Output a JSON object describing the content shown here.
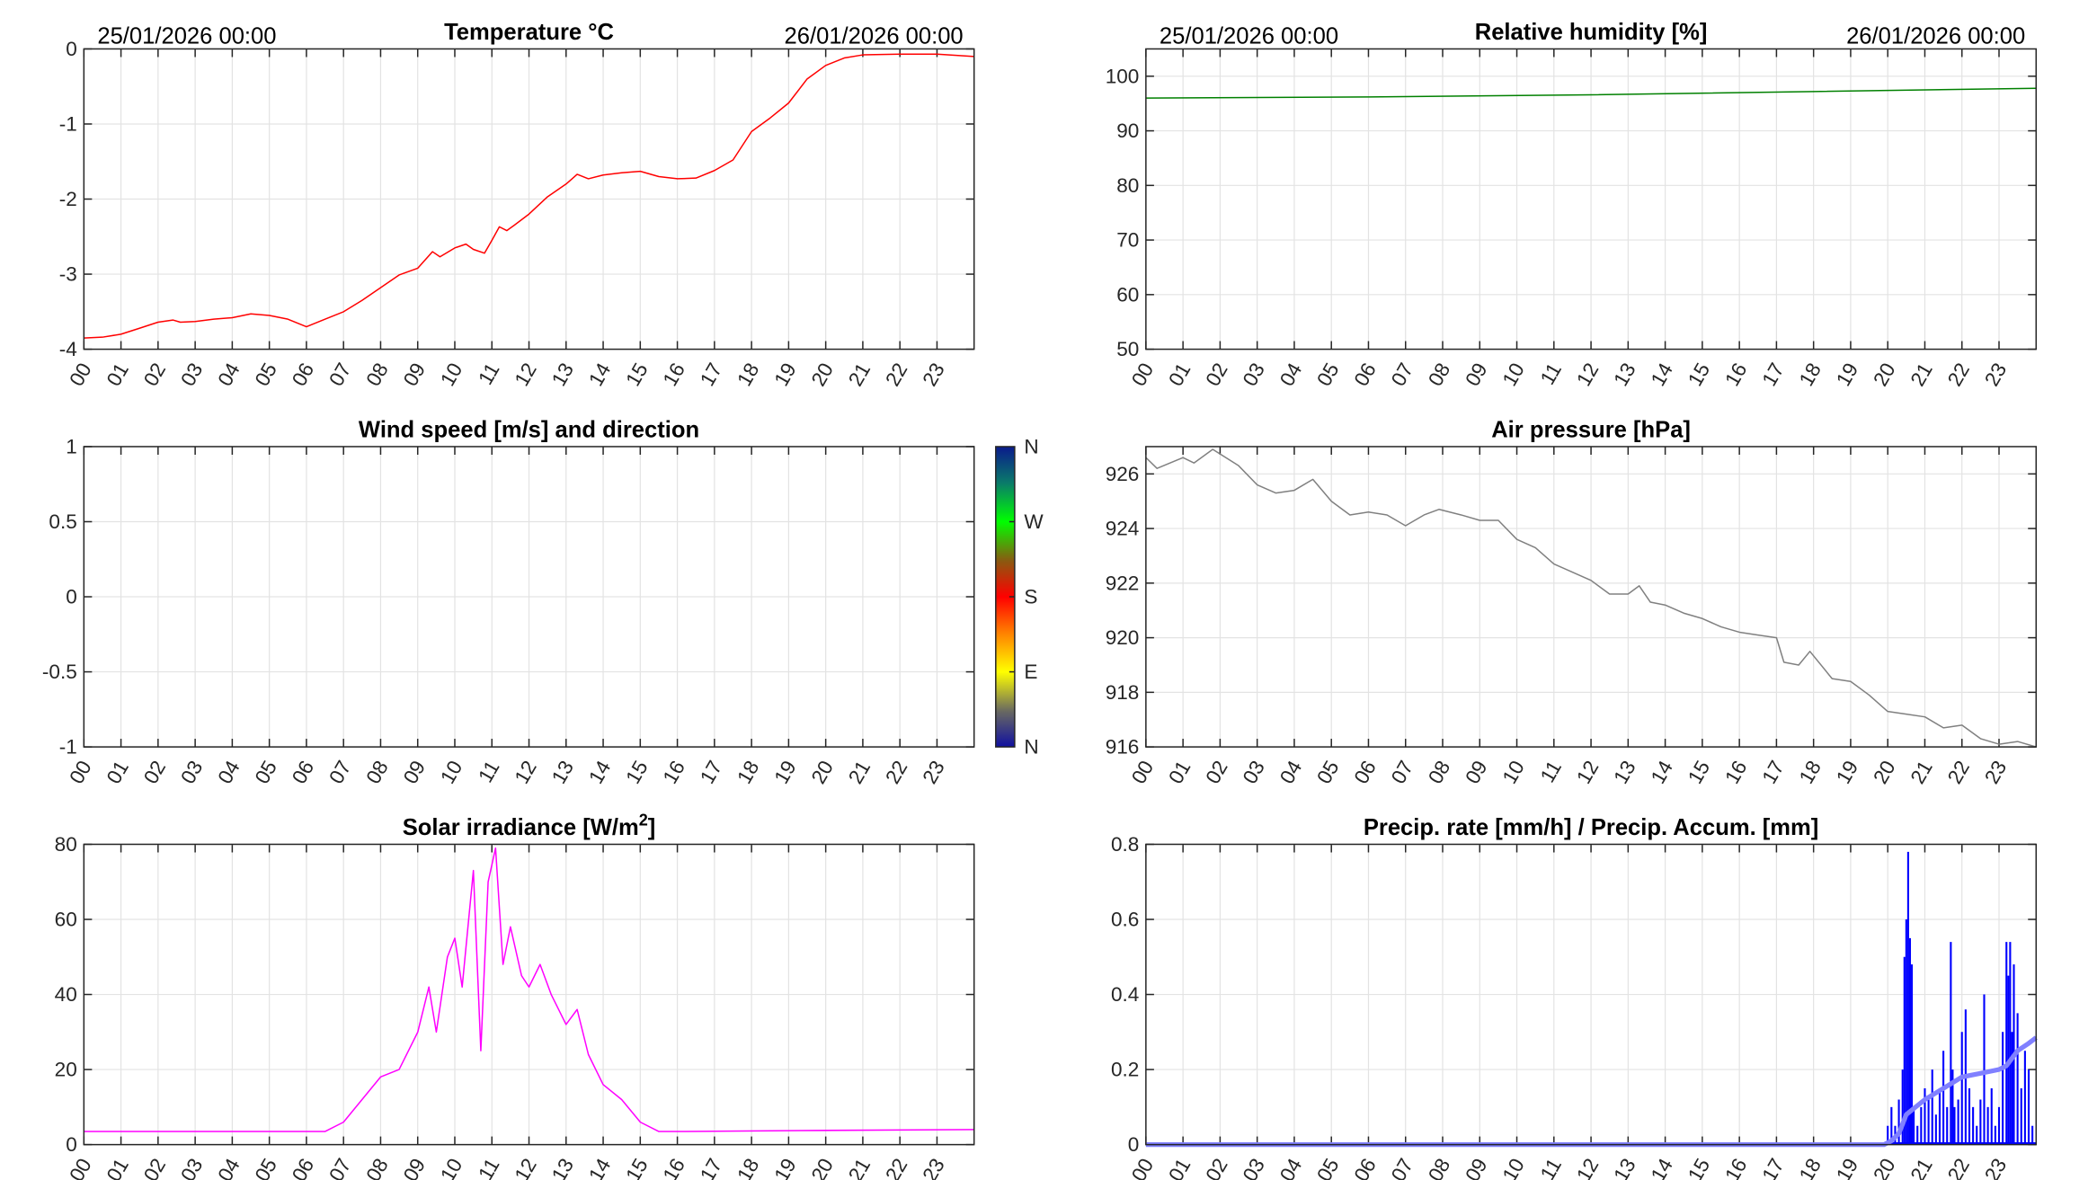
{
  "hours": [
    "00",
    "01",
    "02",
    "03",
    "04",
    "05",
    "06",
    "07",
    "08",
    "09",
    "10",
    "11",
    "12",
    "13",
    "14",
    "15",
    "16",
    "17",
    "18",
    "19",
    "20",
    "21",
    "22",
    "23"
  ],
  "date_start": "25/01/2026 00:00",
  "date_end": "26/01/2026 00:00",
  "chart_data": [
    {
      "id": "temperature",
      "type": "line",
      "title": "Temperature °C",
      "show_dates": true,
      "xlabel": "",
      "ylabel": "",
      "xlim": [
        0,
        24
      ],
      "ylim": [
        -4,
        0
      ],
      "yticks": [
        -4,
        -3,
        -2,
        -1,
        0
      ],
      "ytick_labels": [
        "-4",
        "-3",
        "-2",
        "-1",
        "0"
      ],
      "grid": true,
      "series": [
        {
          "name": "Temperature",
          "color": "#ff0000",
          "x": [
            0,
            0.5,
            1,
            1.5,
            2,
            2.4,
            2.6,
            3,
            3.5,
            4,
            4.5,
            5,
            5.5,
            6,
            6.5,
            7,
            7.5,
            8,
            8.5,
            9,
            9.4,
            9.6,
            10,
            10.3,
            10.5,
            10.8,
            11,
            11.2,
            11.4,
            11.6,
            12,
            12.5,
            13,
            13.3,
            13.6,
            14,
            14.5,
            15,
            15.5,
            16,
            16.5,
            17,
            17.5,
            18,
            18.5,
            19,
            19.5,
            20,
            20.5,
            21,
            22,
            23,
            24
          ],
          "y": [
            -3.85,
            -3.84,
            -3.8,
            -3.72,
            -3.64,
            -3.61,
            -3.64,
            -3.63,
            -3.6,
            -3.58,
            -3.53,
            -3.55,
            -3.6,
            -3.7,
            -3.6,
            -3.5,
            -3.35,
            -3.18,
            -3.01,
            -2.92,
            -2.7,
            -2.77,
            -2.65,
            -2.6,
            -2.67,
            -2.72,
            -2.55,
            -2.37,
            -2.42,
            -2.35,
            -2.2,
            -1.97,
            -1.8,
            -1.67,
            -1.73,
            -1.68,
            -1.65,
            -1.63,
            -1.7,
            -1.73,
            -1.72,
            -1.62,
            -1.48,
            -1.1,
            -0.92,
            -0.72,
            -0.4,
            -0.22,
            -0.12,
            -0.08,
            -0.07,
            -0.07,
            -0.1
          ]
        }
      ]
    },
    {
      "id": "humidity",
      "type": "line",
      "title": "Relative humidity [%]",
      "show_dates": true,
      "xlabel": "",
      "ylabel": "",
      "xlim": [
        0,
        24
      ],
      "ylim": [
        50,
        105
      ],
      "yticks": [
        50,
        60,
        70,
        80,
        90,
        100
      ],
      "ytick_labels": [
        "50",
        "60",
        "70",
        "80",
        "90",
        "100"
      ],
      "grid": true,
      "series": [
        {
          "name": "Relative humidity",
          "color": "#008000",
          "x": [
            0,
            6,
            12,
            18,
            24
          ],
          "y": [
            96,
            96.2,
            96.6,
            97.2,
            97.8
          ]
        }
      ]
    },
    {
      "id": "wind",
      "type": "scatter",
      "title": "Wind speed [m/s] and direction",
      "show_dates": false,
      "xlabel": "",
      "ylabel": "",
      "xlim": [
        0,
        24
      ],
      "ylim": [
        -1,
        1
      ],
      "yticks": [
        -1,
        -0.5,
        0,
        0.5,
        1
      ],
      "ytick_labels": [
        "-1",
        "-0.5",
        "0",
        "0.5",
        "1"
      ],
      "grid": true,
      "series": [],
      "colorbar": {
        "labels": [
          "N",
          "E",
          "S",
          "W",
          "N"
        ],
        "colors": [
          "#1010a0",
          "#ffff00",
          "#ff0000",
          "#00ff00",
          "#0a1a8c"
        ]
      }
    },
    {
      "id": "pressure",
      "type": "line",
      "title": "Air pressure [hPa]",
      "show_dates": false,
      "xlabel": "",
      "ylabel": "",
      "xlim": [
        0,
        24
      ],
      "ylim": [
        916,
        927
      ],
      "yticks": [
        916,
        918,
        920,
        922,
        924,
        926
      ],
      "ytick_labels": [
        "916",
        "918",
        "920",
        "922",
        "924",
        "926"
      ],
      "grid": true,
      "series": [
        {
          "name": "Air pressure",
          "color": "#808080",
          "x": [
            0,
            0.3,
            1,
            1.3,
            1.8,
            2.5,
            3,
            3.5,
            4,
            4.5,
            5,
            5.5,
            6,
            6.5,
            7,
            7.5,
            7.9,
            8.5,
            9,
            9.5,
            10,
            10.5,
            11,
            11.5,
            12,
            12.5,
            13,
            13.3,
            13.6,
            14,
            14.5,
            15,
            15.5,
            16,
            16.5,
            17,
            17.2,
            17.6,
            17.9,
            18.5,
            19,
            19.5,
            20,
            20.5,
            21,
            21.5,
            22,
            22.5,
            23,
            23.5,
            24
          ],
          "y": [
            926.6,
            926.2,
            926.6,
            926.4,
            926.9,
            926.3,
            925.6,
            925.3,
            925.4,
            925.8,
            925.0,
            924.5,
            924.6,
            924.5,
            924.1,
            924.5,
            924.7,
            924.5,
            924.3,
            924.3,
            923.6,
            923.3,
            922.7,
            922.4,
            922.1,
            921.6,
            921.6,
            921.9,
            921.3,
            921.2,
            920.9,
            920.7,
            920.4,
            920.2,
            920.1,
            920.0,
            919.1,
            919.0,
            919.5,
            918.5,
            918.4,
            917.9,
            917.3,
            917.2,
            917.1,
            916.7,
            916.8,
            916.3,
            916.1,
            916.2,
            916.0
          ]
        }
      ]
    },
    {
      "id": "solar",
      "type": "line",
      "title": "Solar irradiance [W/m",
      "title_sup": "2",
      "title_end": "]",
      "show_dates": false,
      "xlabel": "",
      "ylabel": "",
      "xlim": [
        0,
        24
      ],
      "ylim": [
        0,
        80
      ],
      "yticks": [
        0,
        20,
        40,
        60,
        80
      ],
      "ytick_labels": [
        "0",
        "20",
        "40",
        "60",
        "80"
      ],
      "grid": true,
      "series": [
        {
          "name": "Solar irradiance",
          "color": "#ff00ff",
          "x": [
            0,
            3,
            6.5,
            7,
            7.5,
            8,
            8.5,
            9,
            9.3,
            9.5,
            9.8,
            10,
            10.2,
            10.5,
            10.7,
            10.9,
            11.1,
            11.3,
            11.5,
            11.8,
            12,
            12.3,
            12.6,
            13,
            13.3,
            13.6,
            14,
            14.5,
            15,
            15.5,
            16,
            20,
            24
          ],
          "y": [
            3.5,
            3.5,
            3.5,
            6,
            12,
            18,
            20,
            30,
            42,
            30,
            50,
            55,
            42,
            73,
            25,
            70,
            79,
            48,
            58,
            45,
            42,
            48,
            40,
            32,
            36,
            24,
            16,
            12,
            6,
            3.5,
            3.5,
            3.8,
            4
          ]
        }
      ]
    },
    {
      "id": "precipitation",
      "type": "line",
      "title": "Precip. rate [mm/h] / Precip. Accum. [mm]",
      "show_dates": false,
      "xlabel": "",
      "ylabel": "",
      "xlim": [
        0,
        24
      ],
      "ylim": [
        0,
        0.8
      ],
      "yticks": [
        0,
        0.2,
        0.4,
        0.6,
        0.8
      ],
      "ytick_labels": [
        "0",
        "0.2",
        "0.4",
        "0.6",
        "0.8"
      ],
      "grid": true,
      "series": [
        {
          "name": "Precip. rate",
          "color": "#0000ff",
          "style": "stems",
          "x": [
            20.0,
            20.1,
            20.2,
            20.3,
            20.4,
            20.45,
            20.5,
            20.55,
            20.6,
            20.65,
            20.7,
            20.8,
            20.9,
            21.0,
            21.1,
            21.2,
            21.3,
            21.4,
            21.5,
            21.6,
            21.7,
            21.75,
            21.8,
            21.9,
            22.0,
            22.1,
            22.2,
            22.3,
            22.4,
            22.5,
            22.6,
            22.7,
            22.8,
            22.9,
            23.0,
            23.1,
            23.2,
            23.25,
            23.3,
            23.35,
            23.4,
            23.5,
            23.6,
            23.7,
            23.8,
            23.9
          ],
          "y": [
            0.05,
            0.1,
            0.05,
            0.12,
            0.2,
            0.5,
            0.6,
            0.78,
            0.55,
            0.48,
            0.1,
            0.05,
            0.1,
            0.15,
            0.12,
            0.2,
            0.08,
            0.15,
            0.25,
            0.1,
            0.54,
            0.2,
            0.1,
            0.12,
            0.3,
            0.36,
            0.15,
            0.1,
            0.05,
            0.12,
            0.4,
            0.1,
            0.15,
            0.05,
            0.1,
            0.3,
            0.54,
            0.45,
            0.54,
            0.3,
            0.48,
            0.35,
            0.15,
            0.25,
            0.2,
            0.05
          ]
        },
        {
          "name": "Precip. accum.",
          "color": "#8080ff",
          "style": "thick",
          "x": [
            0,
            19.9,
            20.1,
            20.3,
            20.5,
            21,
            21.5,
            22,
            22.5,
            23,
            23.2,
            23.5,
            23.8,
            24
          ],
          "y": [
            0,
            0,
            0.01,
            0.03,
            0.08,
            0.12,
            0.15,
            0.18,
            0.19,
            0.2,
            0.21,
            0.25,
            0.27,
            0.285
          ]
        }
      ]
    }
  ]
}
